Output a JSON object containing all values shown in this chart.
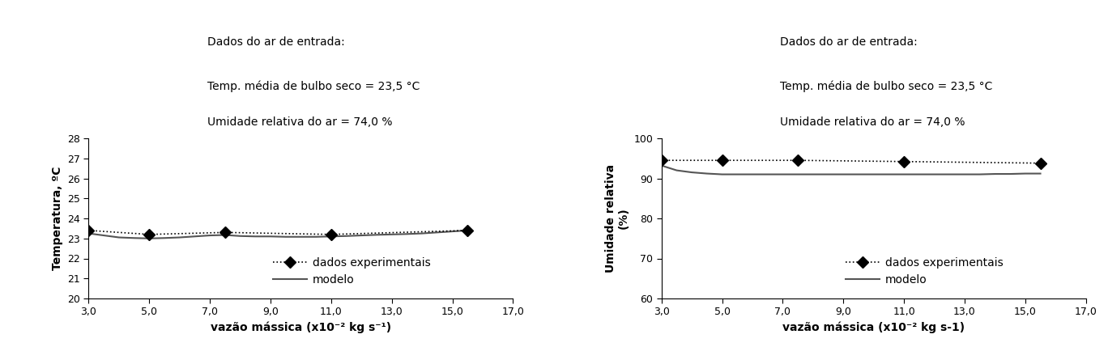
{
  "left": {
    "title_text": "Dados do ar de entrada:",
    "annotation1": "Temp. média de bulbo seco = 23,5 °C",
    "annotation2": "Umidade relativa do ar = 74,0 %",
    "ylabel": "Temperatura, ºC",
    "xlabel": "vazão mássica (x10⁻² kg s⁻¹)",
    "ylim": [
      20,
      28
    ],
    "yticks": [
      20,
      21,
      22,
      23,
      24,
      25,
      26,
      27,
      28
    ],
    "xlim": [
      3.0,
      17.0
    ],
    "xticks": [
      3.0,
      5.0,
      7.0,
      9.0,
      11.0,
      13.0,
      15.0,
      17.0
    ],
    "xticklabels": [
      "3,0",
      "5,0",
      "7,0",
      "9,0",
      "11,0",
      "13,0",
      "15,0",
      "17,0"
    ],
    "exp_x": [
      3.0,
      5.0,
      7.5,
      11.0,
      15.5
    ],
    "exp_y": [
      23.4,
      23.2,
      23.3,
      23.2,
      23.4
    ],
    "model_x": [
      3.0,
      3.5,
      4.0,
      4.5,
      5.0,
      5.5,
      6.0,
      6.5,
      7.0,
      7.5,
      8.0,
      8.5,
      9.0,
      9.5,
      10.0,
      10.5,
      11.0,
      11.5,
      12.0,
      12.5,
      13.0,
      13.5,
      14.0,
      14.5,
      15.0,
      15.5
    ],
    "model_y": [
      23.25,
      23.15,
      23.05,
      23.02,
      23.0,
      23.02,
      23.05,
      23.1,
      23.15,
      23.17,
      23.12,
      23.1,
      23.1,
      23.08,
      23.08,
      23.08,
      23.1,
      23.12,
      23.15,
      23.18,
      23.2,
      23.22,
      23.25,
      23.3,
      23.35,
      23.4
    ],
    "legend_exp": "dados experimentais",
    "legend_model": "modelo"
  },
  "right": {
    "title_text": "Dados do ar de entrada:",
    "annotation1": "Temp. média de bulbo seco = 23,5 °C",
    "annotation2": "Umidade relativa do ar = 74,0 %",
    "ylabel1": "Umidade relativa",
    "ylabel2": "(%)",
    "xlabel": "vazão mássica (x10⁻² kg s-1)",
    "ylim": [
      60,
      100
    ],
    "yticks": [
      60,
      70,
      80,
      90,
      100
    ],
    "xlim": [
      3.0,
      17.0
    ],
    "xticks": [
      3.0,
      5.0,
      7.0,
      9.0,
      11.0,
      13.0,
      15.0,
      17.0
    ],
    "xticklabels": [
      "3,0",
      "5,0",
      "7,0",
      "9,0",
      "11,0",
      "13,0",
      "15,0",
      "17,0"
    ],
    "exp_x": [
      3.0,
      5.0,
      7.5,
      11.0,
      15.5
    ],
    "exp_y": [
      94.5,
      94.5,
      94.5,
      94.2,
      93.8
    ],
    "model_x": [
      3.0,
      3.5,
      4.0,
      4.5,
      5.0,
      5.5,
      6.0,
      6.5,
      7.0,
      7.5,
      8.0,
      8.5,
      9.0,
      9.5,
      10.0,
      10.5,
      11.0,
      11.5,
      12.0,
      12.5,
      13.0,
      13.5,
      14.0,
      14.5,
      15.0,
      15.5
    ],
    "model_y": [
      93.2,
      92.0,
      91.5,
      91.2,
      91.0,
      91.0,
      91.0,
      91.0,
      91.0,
      91.0,
      91.0,
      91.0,
      91.0,
      91.0,
      91.0,
      91.0,
      91.0,
      91.0,
      91.0,
      91.0,
      91.0,
      91.0,
      91.1,
      91.1,
      91.2,
      91.2
    ],
    "legend_exp": "dados experimentais",
    "legend_model": "modelo"
  },
  "background_color": "#ffffff",
  "text_color": "#000000",
  "exp_color": "#000000",
  "model_color": "#555555",
  "fontsize_title": 10,
  "fontsize_annotation": 10,
  "fontsize_axis": 10,
  "fontsize_tick": 9,
  "fontsize_legend": 10
}
